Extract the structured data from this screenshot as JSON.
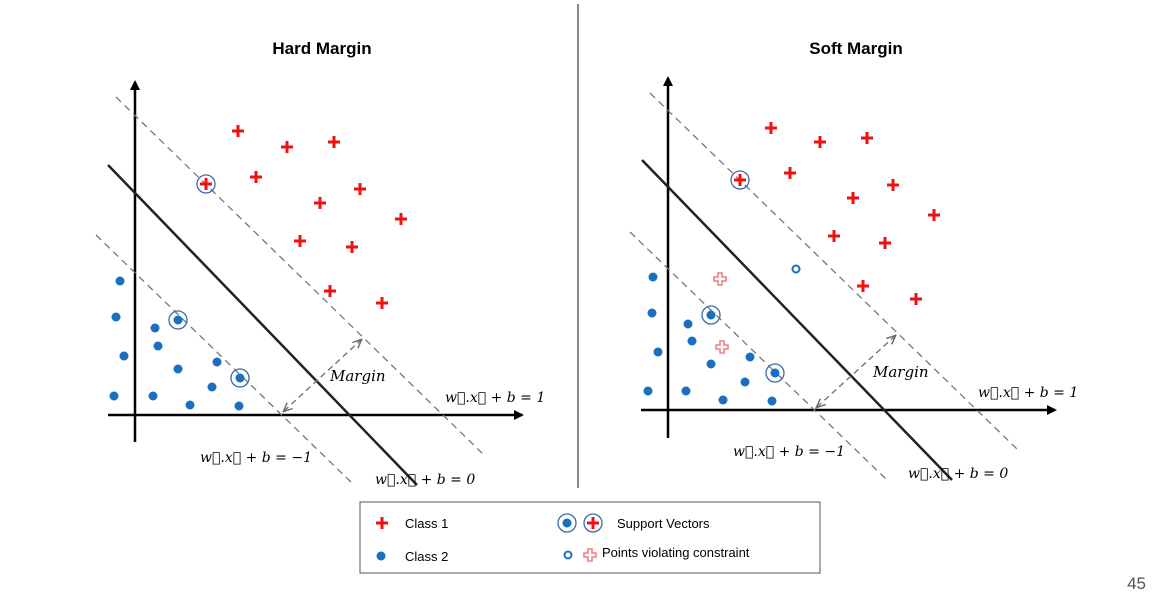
{
  "colors": {
    "class1": "#ee1111",
    "class2": "#1a6fc0",
    "violating_cross": "#f08080",
    "axis": "#000000",
    "hyperplane": "#222222",
    "margin_line": "#777777",
    "divider": "#888888"
  },
  "panels": [
    {
      "title": "Hard Margin",
      "equations": {
        "positive": "w⃗.x⃗ + b = 1",
        "negative": "w⃗.x⃗ + b = −1",
        "zero": "w⃗.x⃗ + b = 0"
      },
      "margin_label": "Margin"
    },
    {
      "title": "Soft Margin",
      "equations": {
        "positive": "w⃗.x⃗ + b = 1",
        "negative": "w⃗.x⃗ + b = −1",
        "zero": "w⃗.x⃗ + b = 0"
      },
      "margin_label": "Margin"
    }
  ],
  "legend": {
    "class1_label": "Class 1",
    "class2_label": "Class 2",
    "support_vectors_label": "Support Vectors",
    "violating_label": "Points violating constraint",
    "class1_icon": "red-plus-icon",
    "class2_icon": "blue-dot-icon",
    "support_vector_icons": [
      "circled-blue-dot-icon",
      "circled-red-plus-icon"
    ],
    "violating_icons": [
      "hollow-blue-circle-icon",
      "hollow-red-plus-icon"
    ]
  },
  "page_number": "45"
}
